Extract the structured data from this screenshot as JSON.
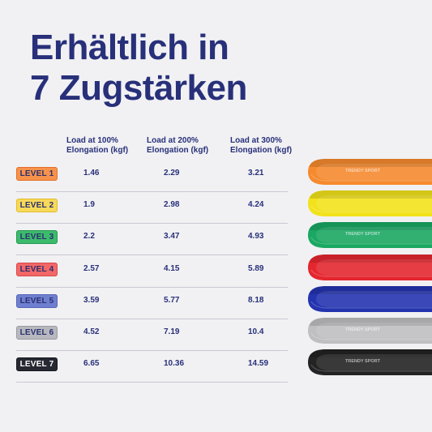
{
  "title": {
    "line1": "Erhältlich in",
    "line2": "7 Zugstärken"
  },
  "columns": [
    {
      "line1": "Load at 100%",
      "line2": "Elongation (kgf)"
    },
    {
      "line1": "Load at 200%",
      "line2": "Elongation (kgf)"
    },
    {
      "line1": "Load at 300%",
      "line2": "Elongation (kgf)"
    }
  ],
  "rows": [
    {
      "level": "LEVEL 1",
      "color": "#f7924a",
      "border": "#e0702a",
      "textColor": "#2a3070",
      "values": [
        "1.46",
        "2.29",
        "3.21"
      ]
    },
    {
      "level": "LEVEL 2",
      "color": "#f7d95a",
      "border": "#e3bc2a",
      "textColor": "#2a3070",
      "values": [
        "1.9",
        "2.98",
        "4.24"
      ]
    },
    {
      "level": "LEVEL 3",
      "color": "#3dbb6c",
      "border": "#23994f",
      "textColor": "#2a3070",
      "values": [
        "2.2",
        "3.47",
        "4.93"
      ]
    },
    {
      "level": "LEVEL 4",
      "color": "#f26767",
      "border": "#d94848",
      "textColor": "#2a3070",
      "values": [
        "2.57",
        "4.15",
        "5.89"
      ]
    },
    {
      "level": "LEVEL 5",
      "color": "#6f7fd0",
      "border": "#5565b8",
      "textColor": "#2a3070",
      "values": [
        "3.59",
        "5.77",
        "8.18"
      ]
    },
    {
      "level": "LEVEL 6",
      "color": "#b7b8be",
      "border": "#9a9ba3",
      "textColor": "#2a3070",
      "values": [
        "4.52",
        "7.19",
        "10.4"
      ]
    },
    {
      "level": "LEVEL 7",
      "color": "#262832",
      "border": "#17181f",
      "textColor": "#ffffff",
      "values": [
        "6.65",
        "10.36",
        "14.59"
      ]
    }
  ],
  "bands": [
    {
      "color": "#f58a2e",
      "brand": "TRENDY SPORT"
    },
    {
      "color": "#f2e21b",
      "brand": ""
    },
    {
      "color": "#1aa862",
      "brand": "TRENDY SPORT"
    },
    {
      "color": "#e4262f",
      "brand": ""
    },
    {
      "color": "#2434b0",
      "brand": ""
    },
    {
      "color": "#bfbfc2",
      "brand": "TRENDY SPORT"
    },
    {
      "color": "#232323",
      "brand": "TRENDY SPORT"
    }
  ]
}
